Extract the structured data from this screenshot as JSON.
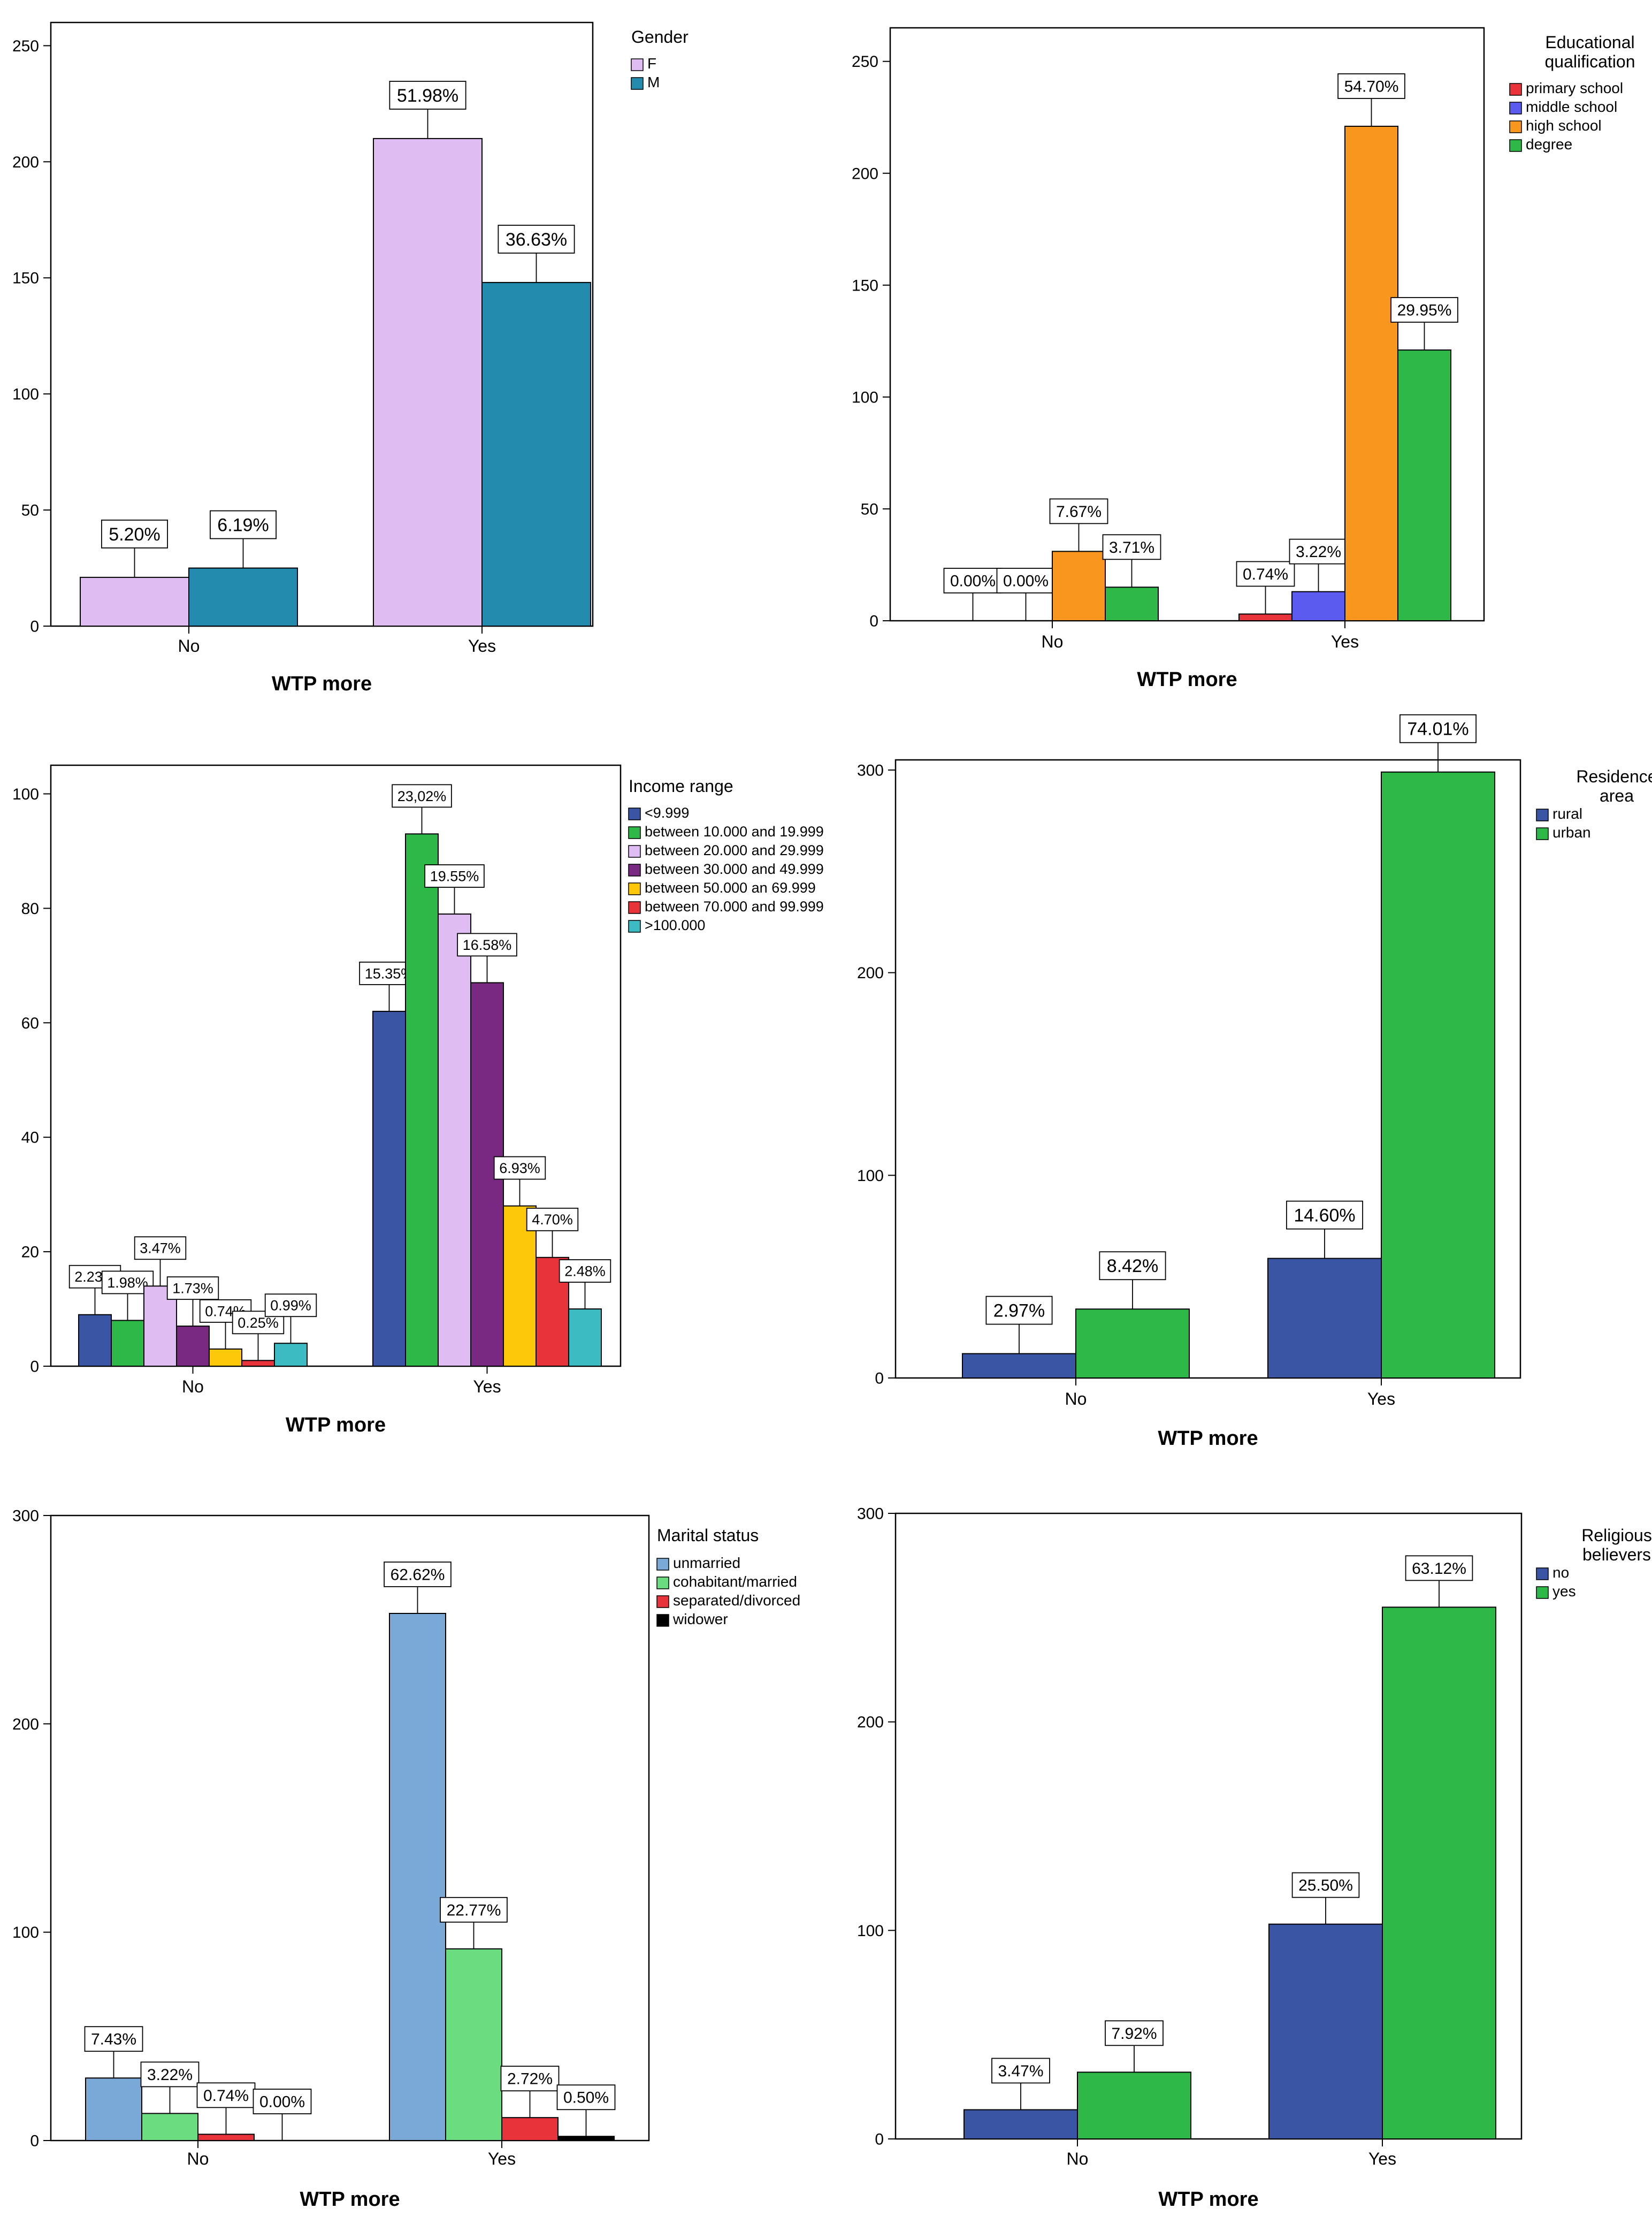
{
  "chart_data": [
    {
      "type": "bar",
      "xlabel": "WTP more",
      "categories": [
        "No",
        "Yes"
      ],
      "ylim": [
        0,
        260
      ],
      "yticks": [
        0,
        50,
        100,
        150,
        200,
        250
      ],
      "legend_title": "Gender",
      "legend_position": "right",
      "series": [
        {
          "name": "F",
          "color": "#dfbcf2",
          "values": [
            21,
            210
          ],
          "labels": [
            "5.20%",
            "51.98%"
          ]
        },
        {
          "name": "M",
          "color": "#238bad",
          "values": [
            25,
            148
          ],
          "labels": [
            "6.19%",
            "36.63%"
          ]
        }
      ]
    },
    {
      "type": "bar",
      "xlabel": "WTP more",
      "categories": [
        "No",
        "Yes"
      ],
      "ylim": [
        0,
        265
      ],
      "yticks": [
        0,
        50,
        100,
        150,
        200,
        250
      ],
      "legend_title": "Educational qualification",
      "legend_position": "right",
      "series": [
        {
          "name": "primary school",
          "color": "#e8333a",
          "values": [
            0,
            3
          ],
          "labels": [
            "0.00%",
            "0.74%"
          ]
        },
        {
          "name": "middle school",
          "color": "#5b5bf0",
          "values": [
            0,
            13
          ],
          "labels": [
            "0.00%",
            "3.22%"
          ]
        },
        {
          "name": "high school",
          "color": "#f8961e",
          "values": [
            31,
            221
          ],
          "labels": [
            "7.67%",
            "54.70%"
          ]
        },
        {
          "name": "degree",
          "color": "#2eb848",
          "values": [
            15,
            121
          ],
          "labels": [
            "3.71%",
            "29.95%"
          ]
        }
      ]
    },
    {
      "type": "bar",
      "xlabel": "WTP more",
      "categories": [
        "No",
        "Yes"
      ],
      "ylim": [
        0,
        105
      ],
      "yticks": [
        0,
        20,
        40,
        60,
        80,
        100
      ],
      "legend_title": "Income range",
      "legend_position": "right",
      "series": [
        {
          "name": "<9.999",
          "color": "#3b55a5",
          "values": [
            9,
            62
          ],
          "labels": [
            "2.23%",
            "15.35%"
          ]
        },
        {
          "name": "between 10.000 and 19.999",
          "color": "#2eb848",
          "values": [
            8,
            93
          ],
          "labels": [
            "1.98%",
            "23,02%"
          ]
        },
        {
          "name": "between 20.000 and 29.999",
          "color": "#dfbcf2",
          "values": [
            14,
            79
          ],
          "labels": [
            "3.47%",
            "19.55%"
          ]
        },
        {
          "name": "between 30.000 and 49.999",
          "color": "#7a2983",
          "values": [
            7,
            67
          ],
          "labels": [
            "1.73%",
            "16.58%"
          ]
        },
        {
          "name": "between 50.000 an 69.999",
          "color": "#fdc80a",
          "values": [
            3,
            28
          ],
          "labels": [
            "0.74%",
            "6.93%"
          ]
        },
        {
          "name": "between 70.000 and 99.999",
          "color": "#e8333a",
          "values": [
            1,
            19
          ],
          "labels": [
            "0.25%",
            "4.70%"
          ]
        },
        {
          "name": ">100.000",
          "color": "#3dbbc2",
          "values": [
            4,
            10
          ],
          "labels": [
            "0.99%",
            "2.48%"
          ]
        }
      ]
    },
    {
      "type": "bar",
      "xlabel": "WTP more",
      "categories": [
        "No",
        "Yes"
      ],
      "ylim": [
        0,
        305
      ],
      "yticks": [
        0,
        100,
        200,
        300
      ],
      "legend_title": "Residence area",
      "legend_position": "right",
      "series": [
        {
          "name": "rural",
          "color": "#3b55a5",
          "values": [
            12,
            59
          ],
          "labels": [
            "2.97%",
            "14.60%"
          ]
        },
        {
          "name": "urban",
          "color": "#2eb848",
          "values": [
            34,
            299
          ],
          "labels": [
            "8.42%",
            "74.01%"
          ]
        }
      ]
    },
    {
      "type": "bar",
      "xlabel": "WTP more",
      "categories": [
        "No",
        "Yes"
      ],
      "ylim": [
        0,
        300
      ],
      "yticks": [
        0,
        100,
        200,
        300
      ],
      "legend_title": "Marital status",
      "legend_position": "right",
      "series": [
        {
          "name": "unmarried",
          "color": "#7aa9d8",
          "values": [
            30,
            253
          ],
          "labels": [
            "7.43%",
            "62.62%"
          ]
        },
        {
          "name": "cohabitant/married",
          "color": "#6cdc80",
          "values": [
            13,
            92
          ],
          "labels": [
            "3.22%",
            "22.77%"
          ]
        },
        {
          "name": "separated/divorced",
          "color": "#e8333a",
          "values": [
            3,
            11
          ],
          "labels": [
            "0.74%",
            "2.72%"
          ]
        },
        {
          "name": "widower",
          "color": "#000000",
          "values": [
            0,
            2
          ],
          "labels": [
            "0.00%",
            "0.50%"
          ]
        }
      ]
    },
    {
      "type": "bar",
      "xlabel": "WTP more",
      "categories": [
        "No",
        "Yes"
      ],
      "ylim": [
        0,
        300
      ],
      "yticks": [
        0,
        100,
        200,
        300
      ],
      "legend_title": "Religious believers",
      "legend_position": "right",
      "series": [
        {
          "name": "no",
          "color": "#3b55a5",
          "values": [
            14,
            103
          ],
          "labels": [
            "3.47%",
            "25.50%"
          ]
        },
        {
          "name": "yes",
          "color": "#2eb848",
          "values": [
            32,
            255
          ],
          "labels": [
            "7.92%",
            "63.12%"
          ]
        }
      ]
    }
  ]
}
